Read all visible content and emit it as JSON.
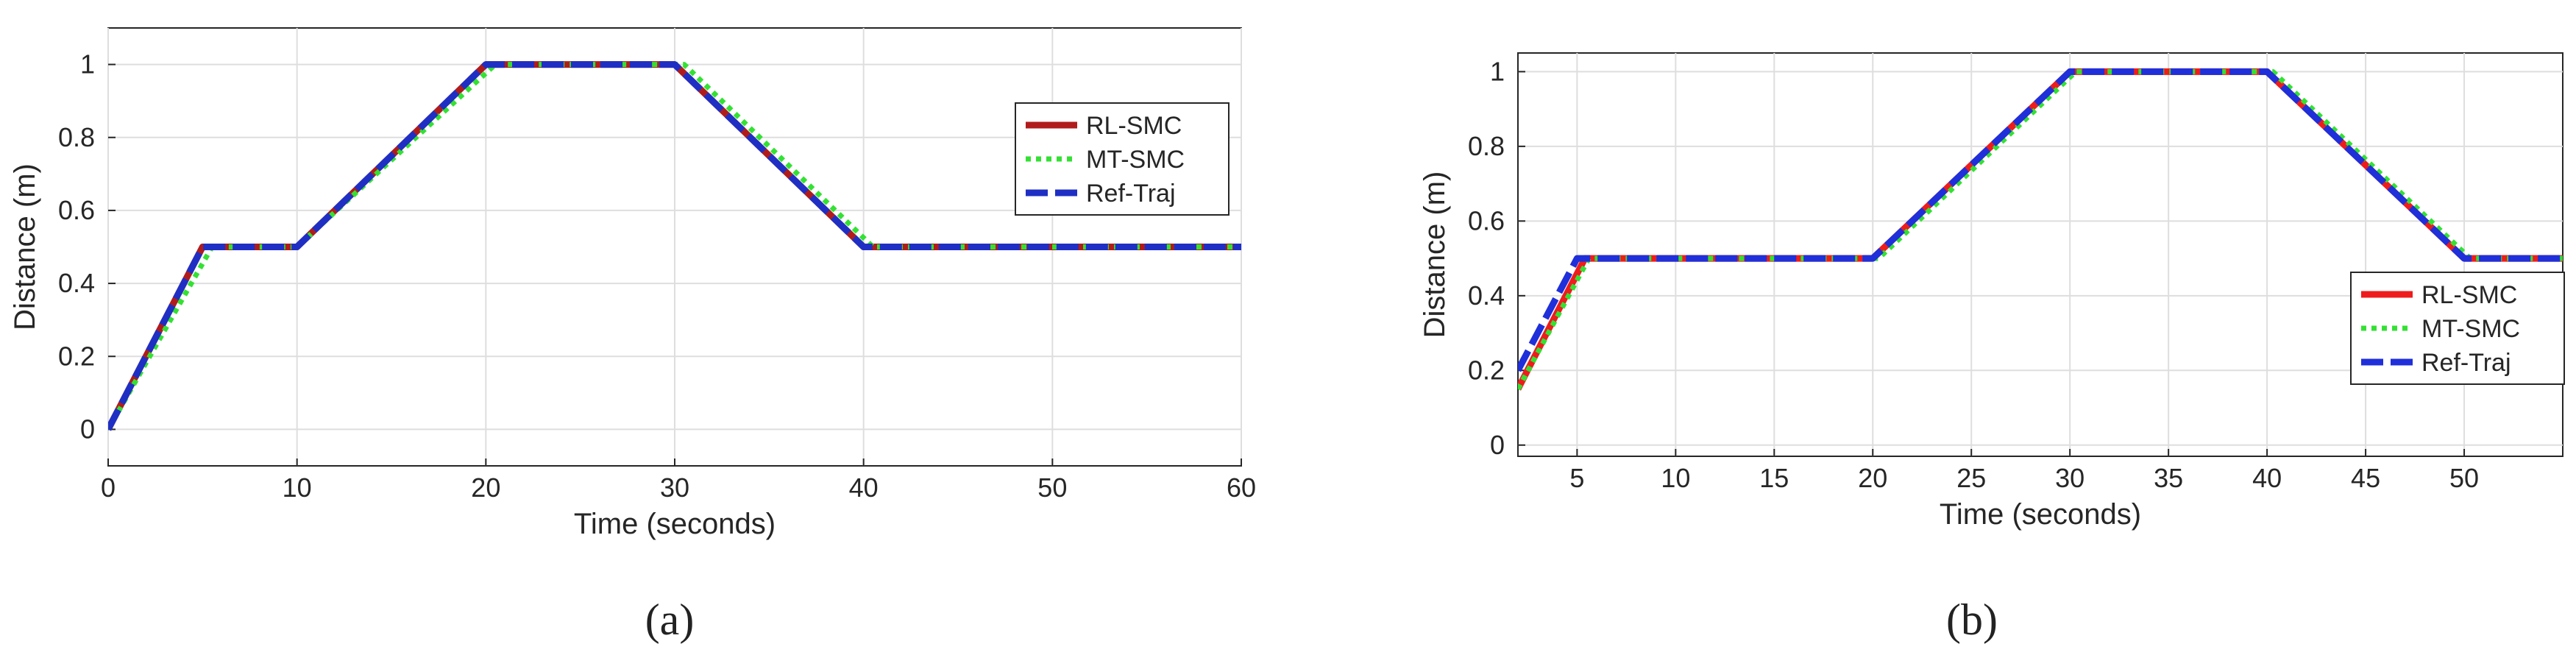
{
  "captions": [
    "(a)",
    "(b)"
  ],
  "chart_data": [
    {
      "type": "line",
      "title": "",
      "xlabel": "Time (seconds)",
      "ylabel": "Distance (m)",
      "xlim": [
        0,
        60
      ],
      "ylim": [
        -0.1,
        1.1
      ],
      "xticks": [
        0,
        10,
        20,
        30,
        40,
        50,
        60
      ],
      "yticks": [
        0,
        0.2,
        0.4,
        0.6,
        0.8,
        1
      ],
      "ytick_labels": [
        "0",
        "0.2",
        "0.4",
        "0.6",
        "0.8",
        "1"
      ],
      "grid": true,
      "legend_position": "upper-right",
      "series": [
        {
          "name": "RL-SMC",
          "color": "#b01c1c",
          "style": "solid",
          "x": [
            0,
            5,
            10,
            20,
            30,
            40,
            60
          ],
          "y": [
            0,
            0.5,
            0.5,
            1,
            1,
            0.5,
            0.5
          ]
        },
        {
          "name": "MT-SMC",
          "color": "#33e133",
          "style": "dotted",
          "x": [
            0,
            5.5,
            10,
            20.5,
            30.5,
            40.5,
            60
          ],
          "y": [
            0,
            0.5,
            0.5,
            1,
            1,
            0.5,
            0.5
          ]
        },
        {
          "name": "Ref-Traj",
          "color": "#1f2fc4",
          "style": "dashed",
          "x": [
            0,
            5,
            10,
            20,
            30,
            40,
            60
          ],
          "y": [
            0,
            0.5,
            0.5,
            1,
            1,
            0.5,
            0.5
          ]
        }
      ]
    },
    {
      "type": "line",
      "title": "",
      "xlabel": "Time (seconds)",
      "ylabel": "Distance (m)",
      "xlim": [
        2,
        55
      ],
      "ylim": [
        -0.03,
        1.05
      ],
      "xticks": [
        5,
        10,
        15,
        20,
        25,
        30,
        35,
        40,
        45,
        50
      ],
      "yticks": [
        0,
        0.2,
        0.4,
        0.6,
        0.8,
        1
      ],
      "ytick_labels": [
        "0",
        "0.2",
        "0.4",
        "0.6",
        "0.8",
        "1"
      ],
      "grid": true,
      "legend_position": "lower-right",
      "series": [
        {
          "name": "RL-SMC",
          "color": "#ee1c1c",
          "style": "solid",
          "x": [
            2,
            5.4,
            20,
            30,
            40,
            50,
            55
          ],
          "y": [
            0.15,
            0.5,
            0.5,
            1,
            1,
            0.5,
            0.5
          ]
        },
        {
          "name": "MT-SMC",
          "color": "#33e133",
          "style": "dotted",
          "x": [
            2,
            5.6,
            20.3,
            30.3,
            40.3,
            50.3,
            55
          ],
          "y": [
            0.15,
            0.5,
            0.5,
            1,
            1,
            0.5,
            0.5
          ]
        },
        {
          "name": "Ref-Traj",
          "color": "#1f2fd9",
          "style": "dashed",
          "x": [
            2,
            5,
            20,
            30,
            40,
            50,
            55
          ],
          "y": [
            0.2,
            0.5,
            0.5,
            1,
            1,
            0.5,
            0.5
          ]
        }
      ]
    }
  ]
}
